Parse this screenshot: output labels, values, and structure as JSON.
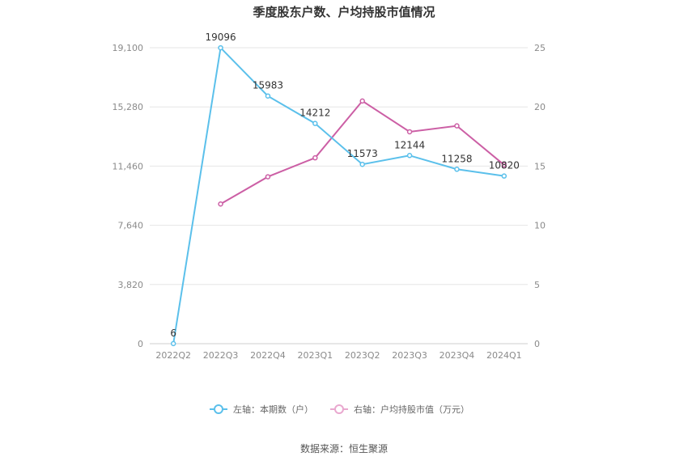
{
  "chart_data": {
    "type": "line",
    "title": "季度股东户数、户均持股市值情况",
    "categories": [
      "2022Q2",
      "2022Q3",
      "2022Q4",
      "2023Q1",
      "2023Q2",
      "2023Q3",
      "2023Q4",
      "2024Q1"
    ],
    "y_left": {
      "ticks": [
        0,
        3820,
        7640,
        11460,
        15280,
        19100
      ],
      "tick_labels": [
        "0",
        "3,820",
        "7,640",
        "11,460",
        "15,280",
        "19,100"
      ],
      "ylim": [
        0,
        19100
      ]
    },
    "y_right": {
      "ticks": [
        0,
        5,
        10,
        15,
        20,
        25
      ],
      "tick_labels": [
        "0",
        "5",
        "10",
        "15",
        "20",
        "25"
      ],
      "ylim": [
        0,
        25
      ]
    },
    "grid": true,
    "legend_position": "bottom-center",
    "series": [
      {
        "name": "左轴：本期数（户）",
        "axis": "left",
        "color": "#5bc0eb",
        "values": [
          6,
          19096,
          15983,
          14212,
          11573,
          12144,
          11258,
          10820
        ],
        "data_labels": [
          "6",
          "19096",
          "15983",
          "14212",
          "11573",
          "12144",
          "11258",
          "10820"
        ]
      },
      {
        "name": "右轴：户均持股市值（万元）",
        "axis": "right",
        "color": "#cc5fa5",
        "values": [
          null,
          11.8,
          14.1,
          15.7,
          20.5,
          17.9,
          18.4,
          15.1
        ]
      }
    ]
  },
  "source": "数据来源：恒生聚源"
}
